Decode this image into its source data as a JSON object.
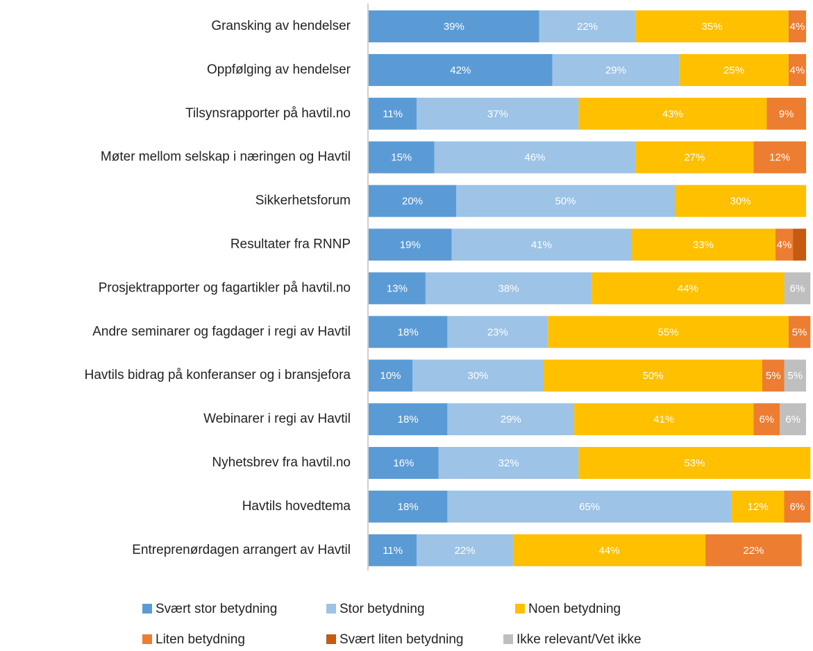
{
  "chart_data": {
    "type": "stacked_bar_horizontal",
    "categories": [
      "Gransking av hendelser",
      "Oppfølging av hendelser",
      "Tilsynsrapporter på havtil.no",
      "Møter mellom selskap i næringen og Havtil",
      "Sikkerhetsforum",
      "Resultater fra RNNP",
      "Prosjektrapporter og fagartikler på havtil.no",
      "Andre seminarer og fagdager i regi av Havtil",
      "Havtils bidrag på konferanser og i bransjefora",
      "Webinarer i regi av Havtil",
      "Nyhetsbrev fra havtil.no",
      "Havtils hovedtema",
      "Entreprenørdagen arrangert av Havtil"
    ],
    "series": [
      {
        "name": "Svært stor betydning",
        "color": "#5b9bd5",
        "values": [
          39,
          42,
          11,
          15,
          20,
          19,
          13,
          18,
          10,
          18,
          16,
          18,
          11
        ],
        "value_labels": [
          "39%",
          "42%",
          "11%",
          "15%",
          "20%",
          "19%",
          "13%",
          "18%",
          "10%",
          "18%",
          "16%",
          "18%",
          "11%"
        ]
      },
      {
        "name": "Stor betydning",
        "color": "#9dc3e6",
        "values": [
          22,
          29,
          37,
          46,
          50,
          41,
          38,
          23,
          30,
          29,
          32,
          65,
          22
        ],
        "value_labels": [
          "22%",
          "29%",
          "37%",
          "46%",
          "50%",
          "41%",
          "38%",
          "23%",
          "30%",
          "29%",
          "32%",
          "65%",
          "22%"
        ]
      },
      {
        "name": "Noen betydning",
        "color": "#ffc000",
        "values": [
          35,
          25,
          43,
          27,
          30,
          33,
          44,
          55,
          50,
          41,
          53,
          12,
          44
        ],
        "value_labels": [
          "35%",
          "25%",
          "43%",
          "27%",
          "30%",
          "33%",
          "44%",
          "55%",
          "50%",
          "41%",
          "53%",
          "12%",
          "44%"
        ]
      },
      {
        "name": "Liten betydning",
        "color": "#ed7d31",
        "values": [
          4,
          4,
          9,
          12,
          null,
          4,
          null,
          5,
          5,
          6,
          null,
          6,
          22
        ],
        "value_labels": [
          "4%",
          "4%",
          "9%",
          "12%",
          null,
          "4%",
          null,
          "5%",
          "5%",
          "6%",
          null,
          "6%",
          "22%"
        ]
      },
      {
        "name": "Svært liten betydning",
        "color": "#c55a11",
        "values": [
          null,
          null,
          null,
          null,
          null,
          3,
          null,
          null,
          null,
          null,
          null,
          null,
          null
        ]
      },
      {
        "name": "Ikke relevant/Vet ikke",
        "color": "#bfbfbf",
        "values": [
          null,
          null,
          null,
          null,
          null,
          null,
          6,
          null,
          5,
          6,
          null,
          null,
          null
        ],
        "value_labels": [
          null,
          null,
          null,
          null,
          null,
          null,
          "6%",
          null,
          "5%",
          "6%",
          null,
          null,
          null
        ]
      }
    ]
  }
}
